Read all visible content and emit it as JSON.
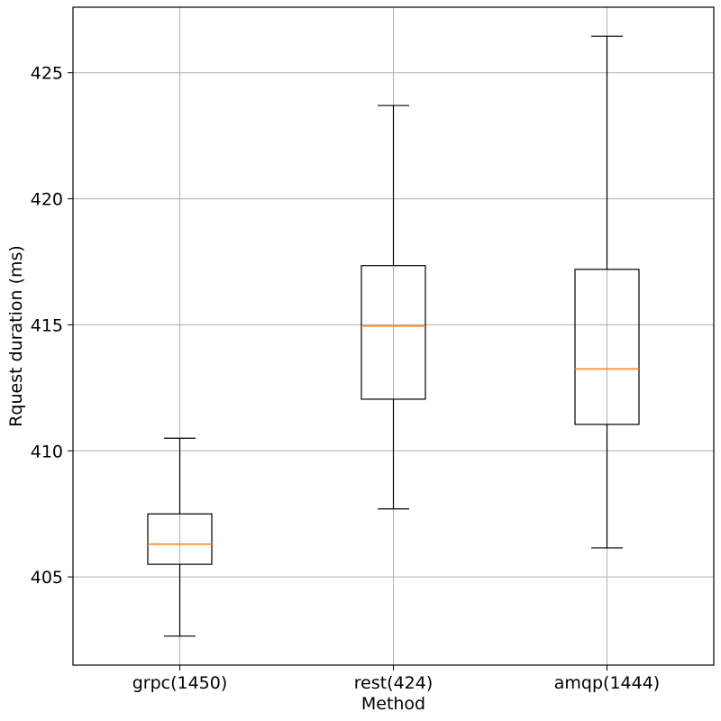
{
  "chart_data": {
    "type": "box",
    "title": "",
    "xlabel": "Method",
    "ylabel": "Rquest duration (ms)",
    "ylim": [
      401.5,
      427.6
    ],
    "yticks": [
      405,
      410,
      415,
      420,
      425
    ],
    "ytick_labels": [
      "405",
      "410",
      "415",
      "420",
      "425"
    ],
    "grid": true,
    "categories": [
      "grpc(1450)",
      "rest(424)",
      "amqp(1444)"
    ],
    "boxes": [
      {
        "whisker_low": 402.65,
        "q1": 405.5,
        "median": 406.3,
        "q3": 407.5,
        "whisker_high": 410.5
      },
      {
        "whisker_low": 407.7,
        "q1": 412.05,
        "median": 414.95,
        "q3": 417.35,
        "whisker_high": 423.7
      },
      {
        "whisker_low": 406.15,
        "q1": 411.05,
        "median": 413.25,
        "q3": 417.2,
        "whisker_high": 426.45
      }
    ],
    "colors": {
      "box": "#000000",
      "median": "#ff7f0e",
      "grid": "#b0b0b0"
    }
  }
}
